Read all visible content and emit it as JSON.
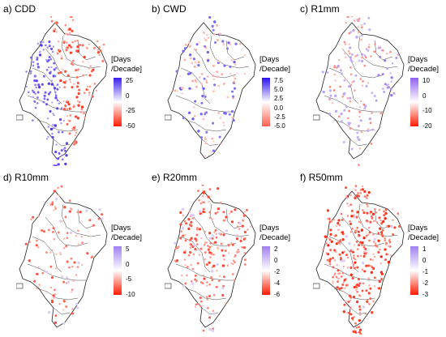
{
  "panels": [
    {
      "id": "a",
      "title": "a) CDD",
      "unit_line1": "[Days",
      "unit_line2": "/Decade]",
      "ticks": [
        "25",
        "0",
        "-25",
        "-50"
      ],
      "colors": {
        "top": "#3a1ff0",
        "mid": "#ffffff",
        "bottom": "#ff1a00"
      },
      "pattern": "purple-west"
    },
    {
      "id": "b",
      "title": "b) CWD",
      "unit_line1": "[Days",
      "unit_line2": "/Decade]",
      "ticks": [
        "7.5",
        "5.0",
        "2.5",
        "0.0",
        "-2.5",
        "-5.0"
      ],
      "colors": {
        "top": "#2a10f0",
        "mid": "#ffffff",
        "bottom": "#ff6050"
      },
      "pattern": "sparse-mixed"
    },
    {
      "id": "c",
      "title": "c) R1mm",
      "unit_line1": "[Days",
      "unit_line2": "/Decade]",
      "ticks": [
        "10",
        "0",
        "-10",
        "-20"
      ],
      "colors": {
        "top": "#9060f0",
        "mid": "#ffffff",
        "bottom": "#ff1a00"
      },
      "pattern": "sparse-east"
    },
    {
      "id": "d",
      "title": "d) R10mm",
      "unit_line1": "[Days",
      "unit_line2": "/Decade]",
      "ticks": [
        "5",
        "0",
        "-5",
        "-10"
      ],
      "colors": {
        "top": "#a080f0",
        "mid": "#ffffff",
        "bottom": "#ff1a00"
      },
      "pattern": "sparse-red"
    },
    {
      "id": "e",
      "title": "e) R20mm",
      "unit_line1": "[Days",
      "unit_line2": "/Decade]",
      "ticks": [
        "2",
        "0",
        "-2",
        "-4",
        "-6"
      ],
      "colors": {
        "top": "#a080f0",
        "mid": "#ffffff",
        "bottom": "#ff1a00"
      },
      "pattern": "red-north"
    },
    {
      "id": "f",
      "title": "f) R50mm",
      "unit_line1": "[Days",
      "unit_line2": "/Decade]",
      "ticks": [
        "1",
        "0",
        "-1",
        "-2",
        "-3"
      ],
      "colors": {
        "top": "#a080f0",
        "mid": "#ffffff",
        "bottom": "#ff1a00"
      },
      "pattern": "red-dense"
    }
  ]
}
